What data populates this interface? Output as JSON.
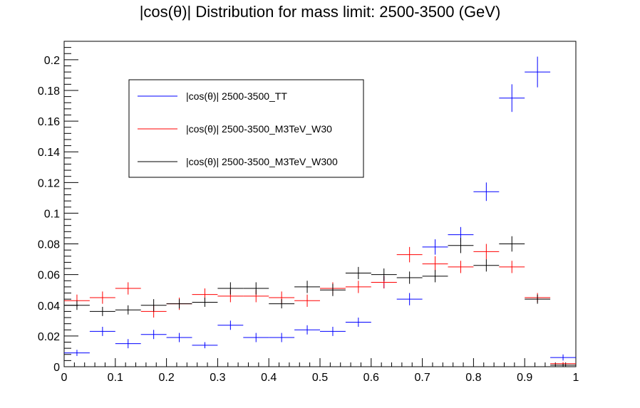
{
  "chart_data": {
    "type": "scatter",
    "title": "|cos(θ)| Distribution for mass limit: 2500-3500 (GeV)",
    "xlabel": "",
    "ylabel": "",
    "xlim": [
      0,
      1
    ],
    "ylim": [
      0,
      0.212
    ],
    "x_ticks": [
      "0",
      "0.1",
      "0.2",
      "0.3",
      "0.4",
      "0.5",
      "0.6",
      "0.7",
      "0.8",
      "0.9",
      "1"
    ],
    "y_ticks": [
      "0",
      "0.02",
      "0.04",
      "0.06",
      "0.08",
      "0.1",
      "0.12",
      "0.14",
      "0.16",
      "0.18",
      "0.2"
    ],
    "bins": [
      0.025,
      0.075,
      0.125,
      0.175,
      0.225,
      0.275,
      0.325,
      0.375,
      0.425,
      0.475,
      0.525,
      0.575,
      0.625,
      0.675,
      0.725,
      0.775,
      0.825,
      0.875,
      0.925,
      0.975
    ],
    "bin_width": 0.05,
    "grid": false,
    "legend_position": "top-left",
    "series": [
      {
        "name": "|cos(θ)| 2500-3500_TT",
        "color": "#0000ff",
        "values": [
          0.009,
          0.023,
          0.015,
          0.021,
          0.019,
          0.014,
          0.027,
          0.019,
          0.019,
          0.024,
          0.023,
          0.029,
          0.055,
          0.044,
          0.078,
          0.086,
          0.114,
          0.175,
          0.192,
          0.006
        ],
        "errors": [
          0.002,
          0.003,
          0.003,
          0.003,
          0.003,
          0.002,
          0.003,
          0.003,
          0.003,
          0.003,
          0.003,
          0.003,
          0.004,
          0.004,
          0.005,
          0.005,
          0.006,
          0.009,
          0.01,
          0.002
        ]
      },
      {
        "name": "|cos(θ)| 2500-3500_M3TeV_W30",
        "color": "#ff0000",
        "values": [
          0.043,
          0.045,
          0.051,
          0.036,
          0.041,
          0.047,
          0.046,
          0.046,
          0.045,
          0.043,
          0.051,
          0.052,
          0.055,
          0.073,
          0.067,
          0.065,
          0.075,
          0.065,
          0.045,
          0.002
        ],
        "errors": [
          0.004,
          0.004,
          0.004,
          0.004,
          0.004,
          0.004,
          0.004,
          0.004,
          0.004,
          0.004,
          0.004,
          0.004,
          0.004,
          0.005,
          0.005,
          0.004,
          0.005,
          0.004,
          0.003,
          0.001
        ]
      },
      {
        "name": "|cos(θ)| 2500-3500_M3TeV_W300",
        "color": "#000000",
        "values": [
          0.04,
          0.036,
          0.037,
          0.04,
          0.041,
          0.042,
          0.051,
          0.051,
          0.041,
          0.052,
          0.05,
          0.061,
          0.06,
          0.058,
          0.059,
          0.079,
          0.066,
          0.08,
          0.044,
          0.001
        ],
        "errors": [
          0.003,
          0.003,
          0.003,
          0.004,
          0.003,
          0.003,
          0.004,
          0.004,
          0.003,
          0.004,
          0.004,
          0.004,
          0.004,
          0.004,
          0.004,
          0.005,
          0.004,
          0.005,
          0.003,
          0.001
        ]
      }
    ]
  }
}
